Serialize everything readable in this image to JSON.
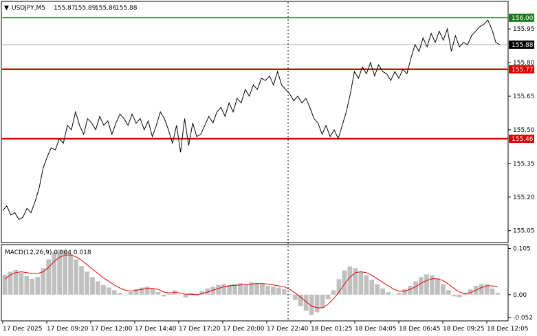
{
  "chart_data": [
    {
      "type": "line",
      "title": "USDJPY,M5",
      "ohlc": {
        "open": "155.87",
        "high": "155.89",
        "low": "155.86",
        "close": "155.88"
      },
      "ylim": [
        155.0,
        156.07
      ],
      "y_ticks": [
        "155.95",
        "155.80",
        "155.65",
        "155.50",
        "155.35",
        "155.20",
        "155.05"
      ],
      "x_ticks": [
        "17 Dec 2025",
        "17 Dec 09:20",
        "17 Dec 12:00",
        "17 Dec 14:40",
        "17 Dec 17:20",
        "17 Dec 20:00",
        "17 Dec 22:40",
        "18 Dec 01:25",
        "18 Dec 04:05",
        "18 Dec 06:45",
        "18 Dec 09:25",
        "18 Dec 12:05"
      ],
      "levels": [
        {
          "value": 156.0,
          "label": "156.00",
          "color": "#1a7a1a"
        },
        {
          "value": 155.77,
          "label": "155.77",
          "color": "#e00000"
        },
        {
          "value": 155.46,
          "label": "155.46",
          "color": "#e00000"
        },
        {
          "value": 155.88,
          "label": "155.88",
          "color": "#000000"
        }
      ],
      "session_divider_index": 70,
      "series": [
        {
          "color": "#000000",
          "values": [
            155.14,
            155.16,
            155.12,
            155.13,
            155.1,
            155.11,
            155.15,
            155.13,
            155.18,
            155.24,
            155.33,
            155.38,
            155.42,
            155.41,
            155.46,
            155.44,
            155.52,
            155.5,
            155.58,
            155.52,
            155.48,
            155.55,
            155.53,
            155.5,
            155.56,
            155.52,
            155.54,
            155.48,
            155.53,
            155.57,
            155.55,
            155.52,
            155.57,
            155.53,
            155.55,
            155.5,
            155.54,
            155.47,
            155.52,
            155.58,
            155.55,
            155.5,
            155.44,
            155.52,
            155.4,
            155.55,
            155.43,
            155.53,
            155.47,
            155.48,
            155.52,
            155.56,
            155.53,
            155.58,
            155.6,
            155.56,
            155.62,
            155.58,
            155.64,
            155.62,
            155.68,
            155.65,
            155.7,
            155.68,
            155.73,
            155.72,
            155.74,
            155.7,
            155.76,
            155.7,
            155.68,
            155.66,
            155.63,
            155.65,
            155.62,
            155.64,
            155.6,
            155.55,
            155.53,
            155.48,
            155.52,
            155.47,
            155.5,
            155.46,
            155.52,
            155.58,
            155.66,
            155.76,
            155.73,
            155.78,
            155.75,
            155.8,
            155.74,
            155.79,
            155.76,
            155.75,
            155.72,
            155.76,
            155.73,
            155.77,
            155.75,
            155.82,
            155.88,
            155.85,
            155.91,
            155.87,
            155.93,
            155.89,
            155.94,
            155.9,
            155.95,
            155.85,
            155.92,
            155.87,
            155.89,
            155.88,
            155.92,
            155.94,
            155.96,
            155.97,
            155.99,
            155.95,
            155.89,
            155.88
          ]
        }
      ]
    },
    {
      "type": "bar",
      "title": "MACD(12,26,9) 0.004 0.018",
      "ylim": [
        -0.058,
        0.112
      ],
      "y_ticks": [
        "0.105",
        "0.00",
        "-0.052"
      ],
      "series": [
        {
          "name": "MACD",
          "color": "#c0c0c0",
          "values": [
            0.045,
            0.052,
            0.056,
            0.05,
            0.042,
            0.036,
            0.04,
            0.06,
            0.08,
            0.096,
            0.102,
            0.1,
            0.092,
            0.08,
            0.065,
            0.052,
            0.04,
            0.03,
            0.022,
            0.016,
            0.01,
            0.004,
            0.0,
            0.006,
            0.012,
            0.016,
            0.018,
            0.014,
            0.006,
            -0.004,
            0.002,
            0.01,
            0.0,
            -0.006,
            0.004,
            -0.002,
            0.008,
            0.014,
            0.018,
            0.022,
            0.024,
            0.022,
            0.024,
            0.026,
            0.024,
            0.028,
            0.026,
            0.024,
            0.02,
            0.018,
            0.016,
            0.012,
            0.002,
            -0.012,
            -0.026,
            -0.036,
            -0.046,
            -0.04,
            -0.03,
            -0.01,
            0.01,
            0.035,
            0.055,
            0.064,
            0.06,
            0.052,
            0.044,
            0.034,
            0.024,
            0.014,
            0.006,
            0.0,
            0.004,
            0.012,
            0.02,
            0.03,
            0.04,
            0.046,
            0.044,
            0.036,
            0.024,
            0.01,
            -0.004,
            -0.006,
            0.004,
            0.012,
            0.02,
            0.024,
            0.024,
            0.014,
            0.004
          ]
        },
        {
          "name": "Signal",
          "color": "#e00000",
          "values": [
            0.035,
            0.045,
            0.05,
            0.052,
            0.05,
            0.048,
            0.048,
            0.052,
            0.062,
            0.075,
            0.085,
            0.09,
            0.09,
            0.086,
            0.078,
            0.068,
            0.058,
            0.048,
            0.038,
            0.03,
            0.022,
            0.015,
            0.01,
            0.008,
            0.01,
            0.012,
            0.014,
            0.014,
            0.012,
            0.006,
            0.004,
            0.005,
            0.004,
            0.001,
            0.001,
            0.0,
            0.002,
            0.006,
            0.01,
            0.014,
            0.018,
            0.02,
            0.021,
            0.022,
            0.023,
            0.024,
            0.025,
            0.025,
            0.024,
            0.022,
            0.02,
            0.018,
            0.012,
            0.004,
            -0.006,
            -0.016,
            -0.026,
            -0.03,
            -0.03,
            -0.022,
            -0.01,
            0.006,
            0.024,
            0.04,
            0.05,
            0.052,
            0.05,
            0.044,
            0.036,
            0.028,
            0.02,
            0.012,
            0.008,
            0.008,
            0.012,
            0.018,
            0.026,
            0.032,
            0.036,
            0.036,
            0.032,
            0.024,
            0.014,
            0.006,
            0.002,
            0.004,
            0.01,
            0.016,
            0.02,
            0.02,
            0.018
          ]
        }
      ]
    }
  ],
  "colors": {
    "background": "#ffffff",
    "axis": "#000000",
    "grid": "#c8c8c8",
    "divider": "#000000"
  }
}
